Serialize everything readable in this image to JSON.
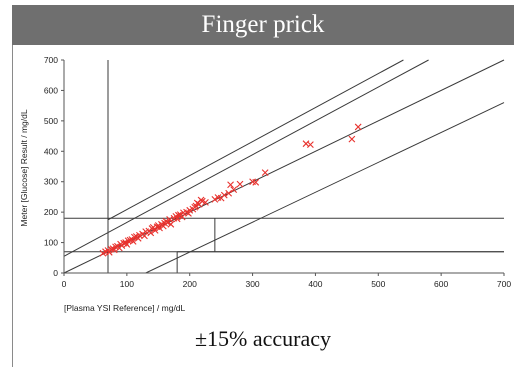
{
  "header": {
    "title": "Finger prick"
  },
  "caption": "±15% accuracy",
  "chart_data": {
    "type": "scatter",
    "title": "Finger prick",
    "xlabel": "[Plasma YSI Reference] / mg/dL",
    "ylabel": "Meter [Glucose] Result / mg/dL",
    "xlim": [
      0,
      700
    ],
    "ylim": [
      0,
      700
    ],
    "xticks": [
      0,
      100,
      200,
      300,
      400,
      500,
      600,
      700
    ],
    "yticks": [
      0,
      100,
      200,
      300,
      400,
      500,
      600,
      700
    ],
    "grid": false,
    "marker": "x",
    "marker_color": "#e8322e",
    "line_color": "#3a3a3a",
    "reference_lines": [
      {
        "x1": 0,
        "y1": 0,
        "x2": 700,
        "y2": 700
      },
      {
        "x1": 70,
        "y1": 175,
        "x2": 540,
        "y2": 700
      },
      {
        "x1": 0,
        "y1": 55,
        "x2": 580,
        "y2": 700
      },
      {
        "x1": 130,
        "y1": 0,
        "x2": 700,
        "y2": 560
      },
      {
        "x1": 70,
        "y1": 0,
        "x2": 70,
        "y2": 700
      },
      {
        "x1": 0,
        "y1": 180,
        "x2": 70,
        "y2": 180
      },
      {
        "x1": 70,
        "y1": 180,
        "x2": 700,
        "y2": 180
      },
      {
        "x1": 0,
        "y1": 70,
        "x2": 700,
        "y2": 70
      },
      {
        "x1": 240,
        "y1": 70,
        "x2": 240,
        "y2": 180
      },
      {
        "x1": 180,
        "y1": 0,
        "x2": 180,
        "y2": 70
      },
      {
        "x1": 180,
        "y1": 70,
        "x2": 700,
        "y2": 70
      }
    ],
    "points": [
      [
        62,
        65
      ],
      [
        66,
        70
      ],
      [
        70,
        74
      ],
      [
        72,
        68
      ],
      [
        75,
        78
      ],
      [
        78,
        80
      ],
      [
        80,
        76
      ],
      [
        82,
        86
      ],
      [
        85,
        88
      ],
      [
        88,
        82
      ],
      [
        90,
        95
      ],
      [
        92,
        90
      ],
      [
        95,
        98
      ],
      [
        98,
        100
      ],
      [
        100,
        94
      ],
      [
        102,
        106
      ],
      [
        105,
        108
      ],
      [
        108,
        110
      ],
      [
        110,
        104
      ],
      [
        112,
        118
      ],
      [
        115,
        120
      ],
      [
        118,
        114
      ],
      [
        120,
        124
      ],
      [
        125,
        128
      ],
      [
        128,
        122
      ],
      [
        130,
        136
      ],
      [
        135,
        138
      ],
      [
        138,
        132
      ],
      [
        140,
        146
      ],
      [
        142,
        150
      ],
      [
        145,
        140
      ],
      [
        148,
        152
      ],
      [
        150,
        156
      ],
      [
        152,
        148
      ],
      [
        155,
        160
      ],
      [
        158,
        154
      ],
      [
        160,
        164
      ],
      [
        162,
        170
      ],
      [
        165,
        166
      ],
      [
        168,
        176
      ],
      [
        170,
        160
      ],
      [
        175,
        180
      ],
      [
        178,
        186
      ],
      [
        180,
        178
      ],
      [
        182,
        190
      ],
      [
        185,
        192
      ],
      [
        188,
        184
      ],
      [
        190,
        198
      ],
      [
        195,
        200
      ],
      [
        198,
        196
      ],
      [
        200,
        206
      ],
      [
        205,
        210
      ],
      [
        208,
        216
      ],
      [
        210,
        220
      ],
      [
        212,
        230
      ],
      [
        215,
        226
      ],
      [
        218,
        240
      ],
      [
        220,
        236
      ],
      [
        225,
        232
      ],
      [
        240,
        242
      ],
      [
        245,
        248
      ],
      [
        250,
        246
      ],
      [
        255,
        256
      ],
      [
        262,
        262
      ],
      [
        265,
        290
      ],
      [
        270,
        274
      ],
      [
        280,
        292
      ],
      [
        300,
        300
      ],
      [
        305,
        298
      ],
      [
        320,
        330
      ],
      [
        385,
        425
      ],
      [
        392,
        422
      ],
      [
        458,
        440
      ],
      [
        468,
        480
      ]
    ]
  }
}
